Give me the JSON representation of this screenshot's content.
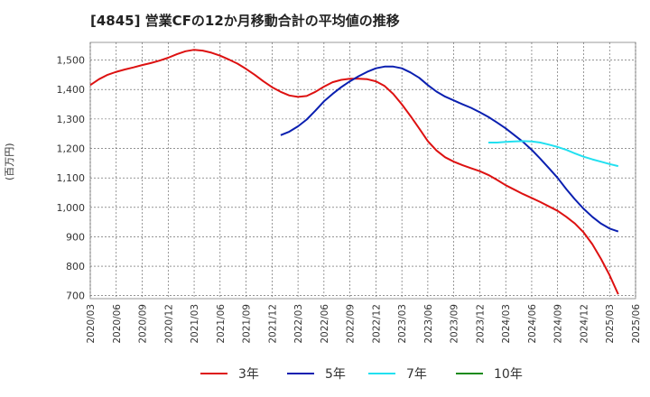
{
  "chart_data": {
    "type": "line",
    "title": "[4845]  営業CFの12か月移動合計の平均値の推移",
    "ylabel": "(百万円)",
    "xlabel": "",
    "ylim": [
      690,
      1560
    ],
    "yticks": [
      700,
      800,
      900,
      1000,
      1100,
      1200,
      1300,
      1400,
      1500
    ],
    "ytick_labels": [
      "700",
      "800",
      "900",
      "1,000",
      "1,100",
      "1,200",
      "1,300",
      "1,400",
      "1,500"
    ],
    "xticks": [
      "2020/03",
      "2020/06",
      "2020/09",
      "2020/12",
      "2021/03",
      "2021/06",
      "2021/09",
      "2021/12",
      "2022/03",
      "2022/06",
      "2022/09",
      "2022/12",
      "2023/03",
      "2023/06",
      "2023/09",
      "2023/12",
      "2024/03",
      "2024/06",
      "2024/09",
      "2024/12",
      "2025/03",
      "2025/06"
    ],
    "grid": true,
    "legend_position": "bottom",
    "series": [
      {
        "name": "3年",
        "color": "#dd1111",
        "points": [
          [
            "2020/03",
            1415
          ],
          [
            "2020/04",
            1435
          ],
          [
            "2020/05",
            1450
          ],
          [
            "2020/06",
            1460
          ],
          [
            "2020/07",
            1468
          ],
          [
            "2020/08",
            1475
          ],
          [
            "2020/09",
            1483
          ],
          [
            "2020/10",
            1490
          ],
          [
            "2020/11",
            1498
          ],
          [
            "2020/12",
            1508
          ],
          [
            "2021/01",
            1520
          ],
          [
            "2021/02",
            1530
          ],
          [
            "2021/03",
            1535
          ],
          [
            "2021/04",
            1532
          ],
          [
            "2021/05",
            1525
          ],
          [
            "2021/06",
            1515
          ],
          [
            "2021/07",
            1502
          ],
          [
            "2021/08",
            1488
          ],
          [
            "2021/09",
            1470
          ],
          [
            "2021/10",
            1450
          ],
          [
            "2021/11",
            1428
          ],
          [
            "2021/12",
            1408
          ],
          [
            "2022/01",
            1392
          ],
          [
            "2022/02",
            1380
          ],
          [
            "2022/03",
            1375
          ],
          [
            "2022/04",
            1378
          ],
          [
            "2022/05",
            1392
          ],
          [
            "2022/06",
            1410
          ],
          [
            "2022/07",
            1425
          ],
          [
            "2022/08",
            1433
          ],
          [
            "2022/09",
            1437
          ],
          [
            "2022/10",
            1437
          ],
          [
            "2022/11",
            1435
          ],
          [
            "2022/12",
            1428
          ],
          [
            "2023/01",
            1412
          ],
          [
            "2023/02",
            1385
          ],
          [
            "2023/03",
            1350
          ],
          [
            "2023/04",
            1310
          ],
          [
            "2023/05",
            1268
          ],
          [
            "2023/06",
            1225
          ],
          [
            "2023/07",
            1193
          ],
          [
            "2023/08",
            1170
          ],
          [
            "2023/09",
            1155
          ],
          [
            "2023/10",
            1143
          ],
          [
            "2023/11",
            1133
          ],
          [
            "2023/12",
            1123
          ],
          [
            "2024/01",
            1110
          ],
          [
            "2024/02",
            1093
          ],
          [
            "2024/03",
            1075
          ],
          [
            "2024/04",
            1060
          ],
          [
            "2024/05",
            1045
          ],
          [
            "2024/06",
            1032
          ],
          [
            "2024/07",
            1018
          ],
          [
            "2024/08",
            1003
          ],
          [
            "2024/09",
            988
          ],
          [
            "2024/10",
            968
          ],
          [
            "2024/11",
            945
          ],
          [
            "2024/12",
            915
          ],
          [
            "2025/01",
            875
          ],
          [
            "2025/02",
            825
          ],
          [
            "2025/03",
            770
          ],
          [
            "2025/04",
            705
          ]
        ]
      },
      {
        "name": "5年",
        "color": "#0a1fb0",
        "points": [
          [
            "2022/01",
            1245
          ],
          [
            "2022/02",
            1257
          ],
          [
            "2022/03",
            1275
          ],
          [
            "2022/04",
            1298
          ],
          [
            "2022/05",
            1328
          ],
          [
            "2022/06",
            1360
          ],
          [
            "2022/07",
            1385
          ],
          [
            "2022/08",
            1408
          ],
          [
            "2022/09",
            1428
          ],
          [
            "2022/10",
            1445
          ],
          [
            "2022/11",
            1460
          ],
          [
            "2022/12",
            1472
          ],
          [
            "2023/01",
            1478
          ],
          [
            "2023/02",
            1478
          ],
          [
            "2023/03",
            1472
          ],
          [
            "2023/04",
            1458
          ],
          [
            "2023/05",
            1440
          ],
          [
            "2023/06",
            1415
          ],
          [
            "2023/07",
            1393
          ],
          [
            "2023/08",
            1376
          ],
          [
            "2023/09",
            1363
          ],
          [
            "2023/10",
            1350
          ],
          [
            "2023/11",
            1338
          ],
          [
            "2023/12",
            1323
          ],
          [
            "2024/01",
            1307
          ],
          [
            "2024/02",
            1288
          ],
          [
            "2024/03",
            1268
          ],
          [
            "2024/04",
            1245
          ],
          [
            "2024/05",
            1222
          ],
          [
            "2024/06",
            1195
          ],
          [
            "2024/07",
            1165
          ],
          [
            "2024/08",
            1133
          ],
          [
            "2024/09",
            1100
          ],
          [
            "2024/10",
            1062
          ],
          [
            "2024/11",
            1027
          ],
          [
            "2024/12",
            995
          ],
          [
            "2025/01",
            968
          ],
          [
            "2025/02",
            945
          ],
          [
            "2025/03",
            928
          ],
          [
            "2025/04",
            918
          ]
        ]
      },
      {
        "name": "7年",
        "color": "#22e0f0",
        "points": [
          [
            "2024/01",
            1220
          ],
          [
            "2024/02",
            1220
          ],
          [
            "2024/03",
            1222
          ],
          [
            "2024/04",
            1224
          ],
          [
            "2024/05",
            1225
          ],
          [
            "2024/06",
            1224
          ],
          [
            "2024/07",
            1220
          ],
          [
            "2024/08",
            1213
          ],
          [
            "2024/09",
            1205
          ],
          [
            "2024/10",
            1195
          ],
          [
            "2024/11",
            1183
          ],
          [
            "2024/12",
            1172
          ],
          [
            "2025/01",
            1163
          ],
          [
            "2025/02",
            1155
          ],
          [
            "2025/03",
            1147
          ],
          [
            "2025/04",
            1140
          ]
        ]
      },
      {
        "name": "10年",
        "color": "#1a8a1a",
        "points": []
      }
    ]
  }
}
